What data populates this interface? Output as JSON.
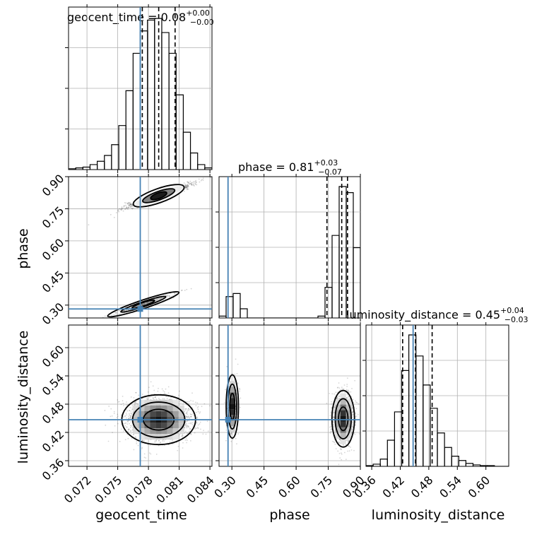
{
  "chart_data": {
    "type": "corner",
    "parameters": [
      "geocent_time",
      "phase",
      "luminosity_distance"
    ],
    "truths": {
      "geocent_time": 0.0772,
      "phase": 0.282,
      "luminosity_distance": 0.447
    },
    "titles": [
      {
        "label": "geocent_time = 0.08",
        "sup": "+0.00",
        "sub": "−0.00"
      },
      {
        "label": "phase = 0.81",
        "sup": "+0.03",
        "sub": "−0.07"
      },
      {
        "label": "luminosity_distance = 0.45",
        "sup": "+0.04",
        "sub": "−0.03"
      }
    ],
    "axes": {
      "geocent_time": {
        "range": [
          0.0702,
          0.0842
        ],
        "ticks": [
          "0.072",
          "0.075",
          "0.078",
          "0.081",
          "0.084"
        ],
        "tick_values": [
          0.072,
          0.075,
          0.078,
          0.081,
          0.084
        ]
      },
      "phase": {
        "range": [
          0.24,
          0.9
        ],
        "ticks": [
          "0.30",
          "0.45",
          "0.60",
          "0.75",
          "0.90"
        ],
        "tick_values": [
          0.3,
          0.45,
          0.6,
          0.75,
          0.9
        ]
      },
      "luminosity_distance": {
        "range": [
          0.348,
          0.648
        ],
        "ticks": [
          "0.36",
          "0.42",
          "0.48",
          "0.54",
          "0.60"
        ],
        "tick_values": [
          0.36,
          0.42,
          0.48,
          0.54,
          0.6
        ]
      }
    },
    "marginals": {
      "geocent_time": {
        "quantiles": [
          0.0774,
          0.079,
          0.0806
        ],
        "bin_edges": [
          0.0702,
          0.0709,
          0.0716,
          0.0723,
          0.073,
          0.0737,
          0.0744,
          0.0751,
          0.0758,
          0.0765,
          0.0772,
          0.0779,
          0.0786,
          0.0793,
          0.08,
          0.0807,
          0.0814,
          0.0821,
          0.0828,
          0.0835,
          0.0842
        ],
        "counts": [
          1,
          2,
          3,
          6,
          10,
          17,
          30,
          53,
          95,
          140,
          167,
          180,
          182,
          165,
          140,
          90,
          45,
          20,
          6,
          2
        ]
      },
      "phase": {
        "quantiles": [
          0.744,
          0.813,
          0.84
        ],
        "bin_edges": [
          0.24,
          0.273,
          0.306,
          0.339,
          0.372,
          0.405,
          0.438,
          0.471,
          0.504,
          0.537,
          0.57,
          0.603,
          0.636,
          0.669,
          0.702,
          0.735,
          0.768,
          0.801,
          0.834,
          0.867,
          0.9
        ],
        "counts": [
          3,
          35,
          40,
          15,
          0,
          0,
          0,
          0,
          0,
          0,
          0,
          0,
          0,
          0,
          3,
          50,
          135,
          215,
          205,
          115
        ]
      },
      "luminosity_distance": {
        "quantiles": [
          0.425,
          0.452,
          0.487
        ],
        "bin_edges": [
          0.348,
          0.363,
          0.378,
          0.393,
          0.408,
          0.423,
          0.438,
          0.453,
          0.468,
          0.483,
          0.498,
          0.513,
          0.528,
          0.543,
          0.558,
          0.573,
          0.588,
          0.603,
          0.618,
          0.633,
          0.648
        ],
        "counts": [
          1,
          3,
          10,
          36,
          75,
          132,
          181,
          152,
          112,
          80,
          46,
          26,
          14,
          8,
          4,
          2,
          1,
          1,
          0,
          0
        ]
      }
    },
    "joint": {
      "phase_vs_geocent_time": {
        "modes": [
          {
            "center": [
              0.079,
              0.811
            ],
            "slope": 17.0,
            "weight": 0.8
          },
          {
            "center": [
              0.0775,
              0.304
            ],
            "slope": 16.0,
            "weight": 0.2
          }
        ]
      },
      "luminosity_distance_vs_geocent_time": {
        "modes": [
          {
            "center": [
              0.079,
              0.447
            ],
            "spread": [
              0.0015,
              0.022
            ]
          }
        ]
      },
      "luminosity_distance_vs_phase": {
        "modes": [
          {
            "center": [
              0.82,
              0.449
            ],
            "spread": [
              0.022,
              0.025
            ],
            "weight": 0.8
          },
          {
            "center": [
              0.302,
              0.475
            ],
            "spread": [
              0.012,
              0.028
            ],
            "weight": 0.2
          }
        ]
      }
    },
    "grid": true,
    "truth_color": "#4682b4"
  }
}
